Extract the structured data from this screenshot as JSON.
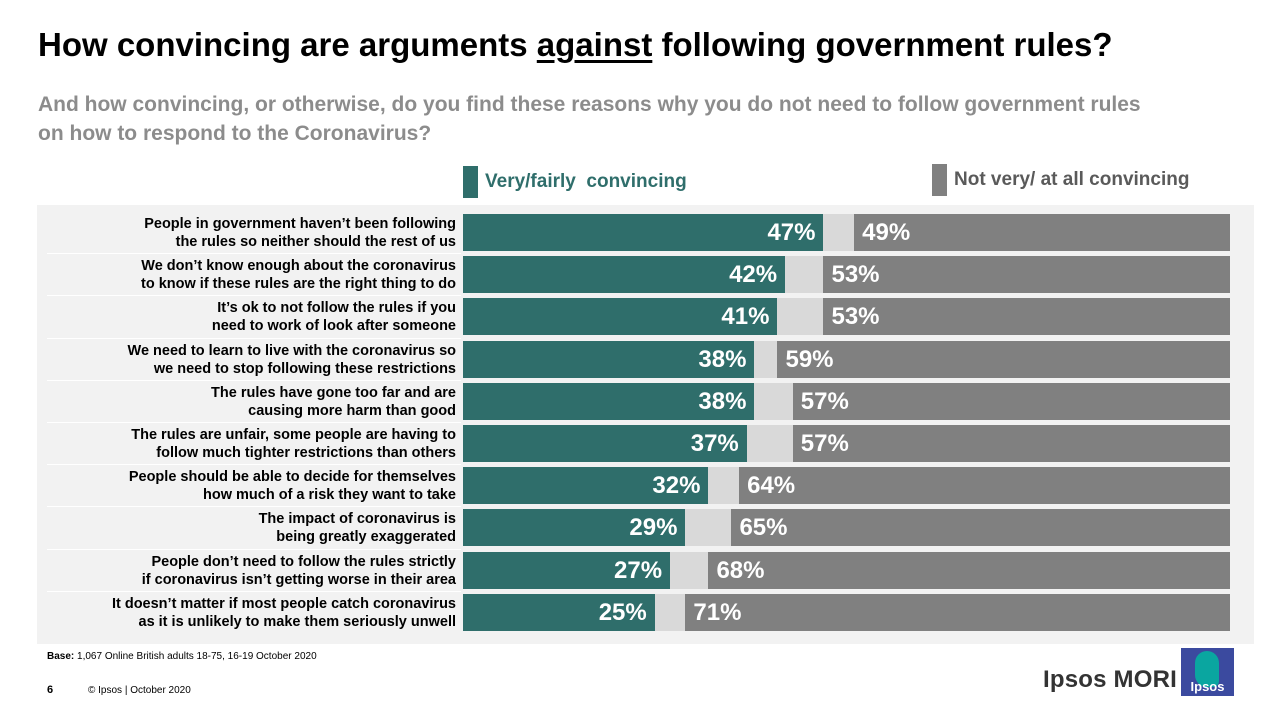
{
  "title": {
    "before": "How convincing are arguments ",
    "emph": "against",
    "after": " following government rules?"
  },
  "subtitle": "And how convincing, or otherwise, do you find these reasons why you do not need to follow government rules on how to respond to the Coronavirus?",
  "legend": {
    "convincing": "Very/fairly  convincing",
    "not_convincing": "Not very/ at all convincing"
  },
  "colors": {
    "convincing": "#2f6e6b",
    "dont_know": "#d9d9d9",
    "not_convincing": "#808080"
  },
  "chart_data": {
    "type": "bar",
    "orientation": "horizontal",
    "stacked": true,
    "categories": [
      [
        "People in government haven’t been following",
        "the rules so neither should the rest of us"
      ],
      [
        "We don’t know enough about the coronavirus",
        "to know if these rules are the right thing to do"
      ],
      [
        "It’s ok to not follow the rules if you",
        "need to work of look after someone"
      ],
      [
        "We need to learn to live with the coronavirus so",
        "we need to stop following these  restrictions"
      ],
      [
        "The rules have gone too far and are",
        "causing more harm than good"
      ],
      [
        "The rules are unfair, some people are having to",
        "follow much tighter restrictions than others"
      ],
      [
        "People should be able to decide for themselves",
        "how much of a risk they want to take"
      ],
      [
        "The impact of coronavirus is",
        "being greatly exaggerated"
      ],
      [
        "People don’t need to follow the rules strictly",
        "if coronavirus isn’t getting worse in their area"
      ],
      [
        "It doesn’t matter if most people catch coronavirus",
        "as it is unlikely to make them seriously unwell"
      ]
    ],
    "series": [
      {
        "name": "Very/fairly  convincing",
        "values": [
          47,
          42,
          41,
          38,
          38,
          37,
          32,
          29,
          27,
          25
        ]
      },
      {
        "values": [
          4,
          5,
          6,
          3,
          5,
          6,
          4,
          6,
          5,
          4
        ]
      },
      {
        "name": "Not very/ at all convincing",
        "values": [
          49,
          53,
          53,
          59,
          57,
          57,
          64,
          65,
          68,
          71
        ]
      }
    ],
    "xlim": [
      0,
      100
    ],
    "value_suffix": "%"
  },
  "base": {
    "label": "Base:",
    "text": "1,067 Online British adults 18-75, 16-19 October 2020"
  },
  "footer": {
    "page": "6",
    "copyright": "© Ipsos | October 2020"
  },
  "logo": {
    "text": "Ipsos MORI",
    "badge": "Ipsos"
  }
}
